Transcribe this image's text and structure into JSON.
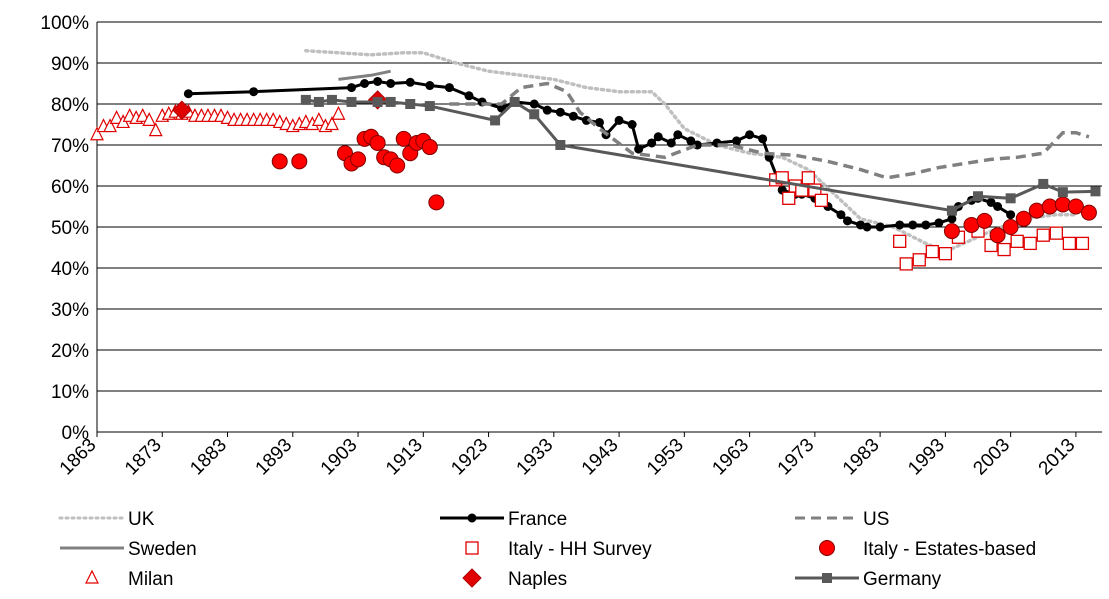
{
  "chart_data": {
    "type": "line",
    "xlim": [
      1863,
      2017
    ],
    "ylim": [
      0,
      100
    ],
    "xticks": [
      1863,
      1873,
      1883,
      1893,
      1903,
      1913,
      1923,
      1933,
      1943,
      1953,
      1963,
      1973,
      1983,
      1993,
      2003,
      2013
    ],
    "yticks": [
      {
        "value": 0,
        "label": "0%"
      },
      {
        "value": 10,
        "label": "10%"
      },
      {
        "value": 20,
        "label": "20%"
      },
      {
        "value": 30,
        "label": "30%"
      },
      {
        "value": 40,
        "label": "40%"
      },
      {
        "value": 50,
        "label": "50%"
      },
      {
        "value": 60,
        "label": "60%"
      },
      {
        "value": 70,
        "label": "70%"
      },
      {
        "value": 80,
        "label": "80%"
      },
      {
        "value": 90,
        "label": "90%"
      },
      {
        "value": 100,
        "label": "100%"
      }
    ],
    "grid": true,
    "series": [
      {
        "name": "UK",
        "color": "#bfbfbf",
        "dash": "dotted",
        "marker": "none",
        "line": true,
        "x": [
          1895,
          1900,
          1905,
          1910,
          1913,
          1918,
          1923,
          1928,
          1933,
          1938,
          1943,
          1948,
          1950,
          1953,
          1958,
          1963,
          1968,
          1972,
          1976,
          1980,
          1985,
          1990,
          1993,
          2000,
          2005,
          2010,
          2013
        ],
        "values": [
          93,
          92.5,
          92,
          92.5,
          92.5,
          90,
          88,
          87,
          86,
          84,
          83,
          83,
          80,
          74,
          70,
          68,
          67,
          64,
          58,
          52,
          50,
          46,
          44,
          49,
          52,
          53,
          53
        ]
      },
      {
        "name": "France",
        "color": "#000000",
        "dash": "solid",
        "marker": "circle",
        "line": true,
        "x": [
          1877,
          1887,
          1902,
          1904,
          1906,
          1908,
          1911,
          1914,
          1917,
          1920,
          1922,
          1925,
          1927,
          1930,
          1932,
          1934,
          1936,
          1938,
          1940,
          1941,
          1943,
          1945,
          1946,
          1948,
          1949,
          1951,
          1952,
          1954,
          1955,
          1958,
          1961,
          1963,
          1965,
          1966,
          1968,
          1970,
          1971,
          1973,
          1975,
          1977,
          1978,
          1980,
          1981,
          1983,
          1986,
          1988,
          1990,
          1992,
          1994,
          1995,
          1997,
          1998,
          2000,
          2001,
          2003
        ],
        "values": [
          82.5,
          83,
          84,
          85,
          85.5,
          85,
          85.3,
          84.5,
          84,
          82,
          80.5,
          79,
          80.5,
          80,
          78.5,
          78,
          77,
          76,
          75.5,
          72.5,
          76,
          75,
          69,
          70.5,
          72,
          70.5,
          72.5,
          71,
          70,
          70.5,
          71,
          72.5,
          71.5,
          67,
          59,
          58,
          58,
          57,
          55,
          53,
          51.5,
          50.5,
          50,
          50,
          50.5,
          50.5,
          50.5,
          51,
          52,
          55,
          56.5,
          57,
          56,
          55,
          53
        ]
      },
      {
        "name": "US",
        "color": "#808080",
        "dash": "dashed",
        "marker": "none",
        "line": true,
        "x": [
          1917,
          1925,
          1928,
          1932,
          1935,
          1937,
          1940,
          1945,
          1950,
          1955,
          1960,
          1965,
          1970,
          1975,
          1980,
          1984,
          1988,
          1992,
          1996,
          2000,
          2004,
          2008,
          2011,
          2013,
          2015
        ],
        "values": [
          80,
          80,
          84,
          85,
          83,
          78,
          74,
          68,
          67,
          70,
          70,
          68,
          67.5,
          66,
          64,
          62,
          63,
          64.5,
          65.5,
          66.5,
          67,
          68,
          73,
          73,
          72
        ]
      },
      {
        "name": "Sweden",
        "color": "#808080",
        "dash": "solid",
        "marker": "none",
        "line": true,
        "x": [
          1900,
          1905,
          1908
        ],
        "values": [
          86,
          87,
          88
        ]
      },
      {
        "name": "Italy - HH Survey",
        "color": "#e00000",
        "dash": "solid",
        "marker": "square-open",
        "line": false,
        "x": [
          1967,
          1968,
          1969,
          1970,
          1971,
          1972,
          1973,
          1974,
          1986,
          1987,
          1989,
          1991,
          1993,
          1995,
          1998,
          2000,
          2002,
          2004,
          2006,
          2008,
          2010,
          2012,
          2014
        ],
        "values": [
          61.5,
          62,
          57,
          60,
          59,
          62,
          59,
          56.5,
          46.5,
          41,
          42,
          44,
          43.5,
          47.5,
          49,
          45.5,
          44.5,
          46.5,
          46,
          48,
          48.5,
          46,
          46
        ]
      },
      {
        "name": "Italy - Estates-based",
        "color": "#ff0000",
        "dash": "solid",
        "marker": "circle-fill",
        "line": false,
        "x": [
          1891,
          1894,
          1901,
          1902,
          1903,
          1904,
          1905,
          1906,
          1907,
          1908,
          1909,
          1910,
          1911,
          1912,
          1913,
          1914,
          1915,
          1994,
          1997,
          1999,
          2001,
          2003,
          2005,
          2007,
          2009,
          2011,
          2013,
          2015
        ],
        "values": [
          66,
          66,
          68,
          65.5,
          66.5,
          71.5,
          72,
          70.5,
          67,
          66.5,
          65,
          71.5,
          68,
          70.5,
          71,
          69.5,
          56,
          49,
          50.5,
          51.5,
          48,
          50,
          52,
          54,
          55,
          55.5,
          55,
          53.5
        ]
      },
      {
        "name": "Milan",
        "color": "#e00000",
        "dash": "solid",
        "marker": "triangle-open",
        "line": false,
        "x": [
          1863,
          1864,
          1865,
          1866,
          1867,
          1868,
          1869,
          1870,
          1871,
          1872,
          1873,
          1874,
          1875,
          1876,
          1877,
          1878,
          1879,
          1880,
          1881,
          1882,
          1883,
          1884,
          1885,
          1886,
          1887,
          1888,
          1889,
          1890,
          1891,
          1892,
          1893,
          1894,
          1895,
          1896,
          1897,
          1898,
          1899,
          1900
        ],
        "values": [
          72.5,
          74.5,
          74.5,
          76.5,
          75.5,
          77,
          76.5,
          77,
          76,
          73.5,
          77,
          77.5,
          78,
          77.5,
          78,
          77,
          77,
          77,
          77,
          77,
          76.5,
          76,
          76,
          76,
          76,
          76,
          76,
          76,
          75.5,
          75,
          74.5,
          75,
          75.5,
          75,
          76,
          74.5,
          75,
          77.5
        ]
      },
      {
        "name": "Naples",
        "color": "#e00000",
        "dash": "solid",
        "marker": "diamond",
        "line": false,
        "x": [
          1876,
          1906
        ],
        "values": [
          78.5,
          81
        ]
      },
      {
        "name": "Germany",
        "color": "#595959",
        "dash": "solid",
        "marker": "square",
        "line": true,
        "x": [
          1895,
          1897,
          1899,
          1902,
          1906,
          1908,
          1911,
          1914,
          1924,
          1927,
          1930,
          1934,
          1994,
          1998,
          2003,
          2008,
          2011,
          2016
        ],
        "values": [
          81,
          80.5,
          81,
          80.5,
          80.5,
          80.5,
          80,
          79.5,
          76,
          80.5,
          77.5,
          70,
          54,
          57.5,
          57,
          60.5,
          58.5,
          58.7
        ]
      }
    ]
  }
}
